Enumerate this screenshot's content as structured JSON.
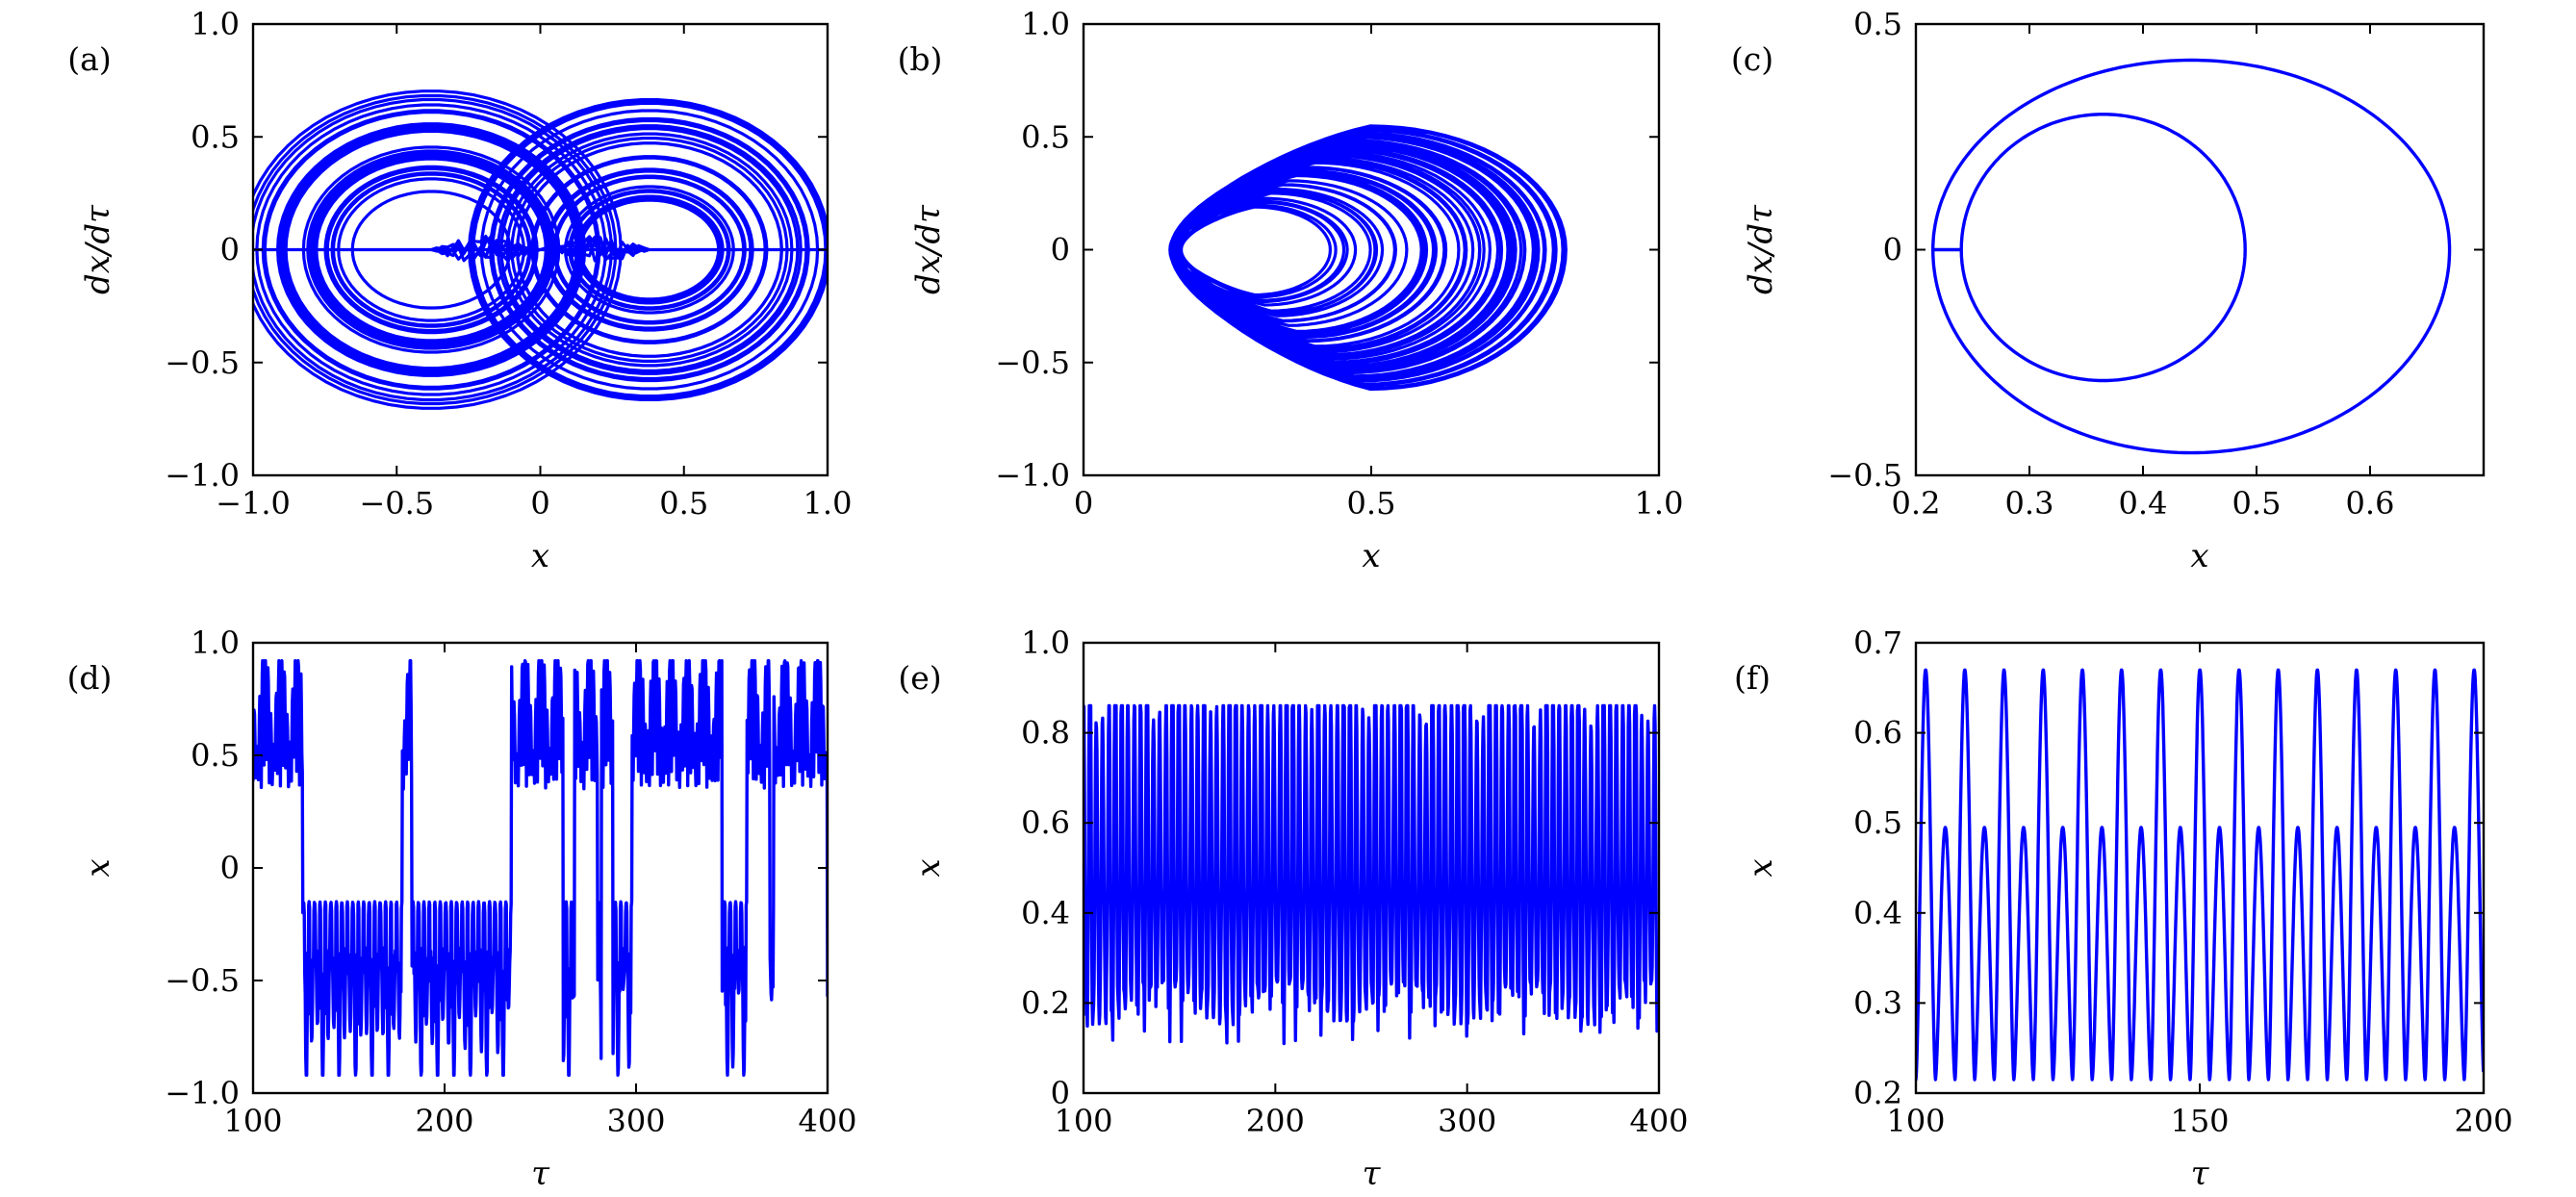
{
  "style": {
    "line_color": "#0000ff",
    "background": "#ffffff",
    "axis_color": "#000000"
  },
  "chart_data": [
    {
      "id": "a",
      "panel_label": "(a)",
      "type": "line",
      "kind": "phase",
      "xlabel": "x",
      "ylabel": "dx/dτ",
      "xlim": [
        -1.0,
        1.0
      ],
      "ylim": [
        -1.0,
        1.0
      ],
      "xticks": [
        -1.0,
        -0.5,
        0,
        0.5,
        1.0
      ],
      "xtick_labels": [
        "−1.0",
        "−0.5",
        "0",
        "0.5",
        "1.0"
      ],
      "yticks": [
        -1.0,
        -0.5,
        0,
        0.5,
        1.0
      ],
      "ytick_labels": [
        "−1.0",
        "−0.5",
        "0",
        "0.5",
        "1.0"
      ],
      "series": [
        {
          "description": "double-scroll chaotic attractor",
          "lobes": [
            {
              "center_x": -0.38,
              "x_min_range": [
                -0.9,
                -0.3
              ],
              "amp_range": [
                0.22,
                0.72
              ]
            },
            {
              "center_x": 0.38,
              "x_max_range": [
                0.3,
                0.92
              ],
              "amp_range": [
                0.22,
                0.72
              ]
            }
          ]
        }
      ]
    },
    {
      "id": "b",
      "panel_label": "(b)",
      "type": "line",
      "kind": "phase",
      "xlabel": "x",
      "ylabel": "dx/dτ",
      "xlim": [
        0,
        1.0
      ],
      "ylim": [
        -1.0,
        1.0
      ],
      "xticks": [
        0,
        0.5,
        1.0
      ],
      "xtick_labels": [
        "0",
        "0.5",
        "1.0"
      ],
      "yticks": [
        -1.0,
        -0.5,
        0,
        0.5,
        1.0
      ],
      "ytick_labels": [
        "−1.0",
        "−0.5",
        "0",
        "0.5",
        "1.0"
      ],
      "series": [
        {
          "description": "single-scroll chaotic attractor",
          "x_min": 0.15,
          "x_max_range": [
            0.35,
            0.84
          ],
          "y_max": 0.55,
          "y_min": -0.62
        }
      ]
    },
    {
      "id": "c",
      "panel_label": "(c)",
      "type": "line",
      "kind": "phase",
      "xlabel": "x",
      "ylabel": "dx/dτ",
      "xlim": [
        0.2,
        0.7
      ],
      "ylim": [
        -0.5,
        0.5
      ],
      "xticks": [
        0.2,
        0.3,
        0.4,
        0.5,
        0.6
      ],
      "xtick_labels": [
        "0.2",
        "0.3",
        "0.4",
        "0.5",
        "0.6"
      ],
      "yticks": [
        -0.5,
        0,
        0.5
      ],
      "ytick_labels": [
        "−0.5",
        "0",
        "0.5"
      ],
      "series": [
        {
          "description": "period-2 limit cycle",
          "outer_loop": {
            "x_min": 0.215,
            "x_max": 0.67,
            "y_max": 0.42,
            "y_min": -0.45
          },
          "inner_loop": {
            "x_min": 0.24,
            "x_max": 0.49,
            "y_max": 0.3,
            "y_min": -0.29
          }
        }
      ]
    },
    {
      "id": "d",
      "panel_label": "(d)",
      "type": "line",
      "kind": "time",
      "xlabel": "τ",
      "ylabel": "x",
      "xlim": [
        100,
        400
      ],
      "ylim": [
        -1.0,
        1.0
      ],
      "xticks": [
        100,
        200,
        300,
        400
      ],
      "xtick_labels": [
        "100",
        "200",
        "300",
        "400"
      ],
      "yticks": [
        -1.0,
        -0.5,
        0,
        0.5,
        1.0
      ],
      "ytick_labels": [
        "−1.0",
        "−0.5",
        "0",
        "0.5",
        "1.0"
      ],
      "series": [
        {
          "description": "chaotic time series switching between positive and negative states",
          "positive_intervals": [
            [
              100,
              126
            ],
            [
              178,
              183
            ],
            [
              235,
              262
            ],
            [
              268,
              280
            ],
            [
              282,
              288
            ],
            [
              298,
              345
            ],
            [
              358,
              370
            ],
            [
              372,
              400
            ]
          ],
          "x_range": [
            -0.92,
            0.92
          ]
        }
      ]
    },
    {
      "id": "e",
      "panel_label": "(e)",
      "type": "line",
      "kind": "time",
      "xlabel": "τ",
      "ylabel": "x",
      "xlim": [
        100,
        400
      ],
      "ylim": [
        0,
        1.0
      ],
      "xticks": [
        100,
        200,
        300,
        400
      ],
      "xtick_labels": [
        "100",
        "200",
        "300",
        "400"
      ],
      "yticks": [
        0,
        0.2,
        0.4,
        0.6,
        0.8,
        1.0
      ],
      "ytick_labels": [
        "0",
        "0.2",
        "0.4",
        "0.6",
        "0.8",
        "1.0"
      ],
      "series": [
        {
          "description": "chaotic time series",
          "x_range": [
            0.08,
            0.86
          ]
        }
      ]
    },
    {
      "id": "f",
      "panel_label": "(f)",
      "type": "line",
      "kind": "time",
      "xlabel": "τ",
      "ylabel": "x",
      "xlim": [
        100,
        200
      ],
      "ylim": [
        0.2,
        0.7
      ],
      "xticks": [
        100,
        150,
        200
      ],
      "xtick_labels": [
        "100",
        "150",
        "200"
      ],
      "yticks": [
        0.2,
        0.3,
        0.4,
        0.5,
        0.6,
        0.7
      ],
      "ytick_labels": [
        "0.2",
        "0.3",
        "0.4",
        "0.5",
        "0.6",
        "0.7"
      ],
      "series": [
        {
          "description": "periodic time series with alternating peaks",
          "period": 6.9,
          "high_peak": 0.67,
          "low_peak": 0.495,
          "trough": 0.215
        }
      ]
    }
  ]
}
